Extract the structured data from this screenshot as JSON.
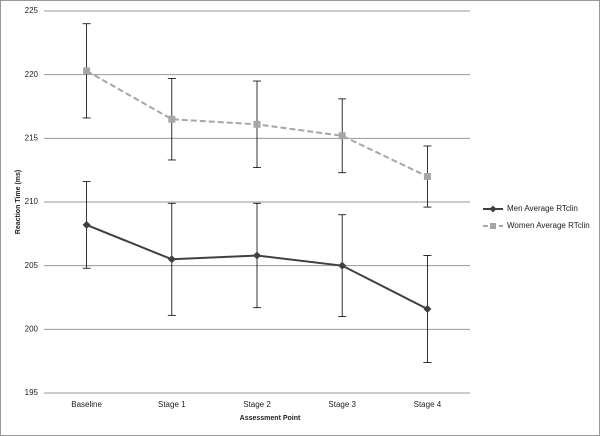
{
  "chart_data": {
    "type": "line",
    "categories": [
      "Baseline",
      "Stage 1",
      "Stage 2",
      "Stage 3",
      "Stage 4"
    ],
    "series": [
      {
        "name": "Men Average RTclin",
        "color": "#404040",
        "line_style": "solid",
        "marker": "diamond",
        "values": [
          208.2,
          205.5,
          205.8,
          205.0,
          201.6
        ],
        "errors": [
          3.4,
          4.4,
          4.1,
          4.0,
          4.2
        ]
      },
      {
        "name": "Women Average RTclin",
        "color": "#a6a6a6",
        "line_style": "dashed",
        "marker": "square",
        "values": [
          220.3,
          216.5,
          216.1,
          215.2,
          212.0
        ],
        "errors": [
          3.7,
          3.2,
          3.4,
          2.9,
          2.4
        ]
      }
    ],
    "xlabel": "Assessment Point",
    "ylabel": "Reaction Time (ms)",
    "ylim": [
      195,
      225
    ],
    "yticks": [
      195,
      200,
      205,
      210,
      215,
      220,
      225
    ],
    "grid": true,
    "legend": "right"
  }
}
